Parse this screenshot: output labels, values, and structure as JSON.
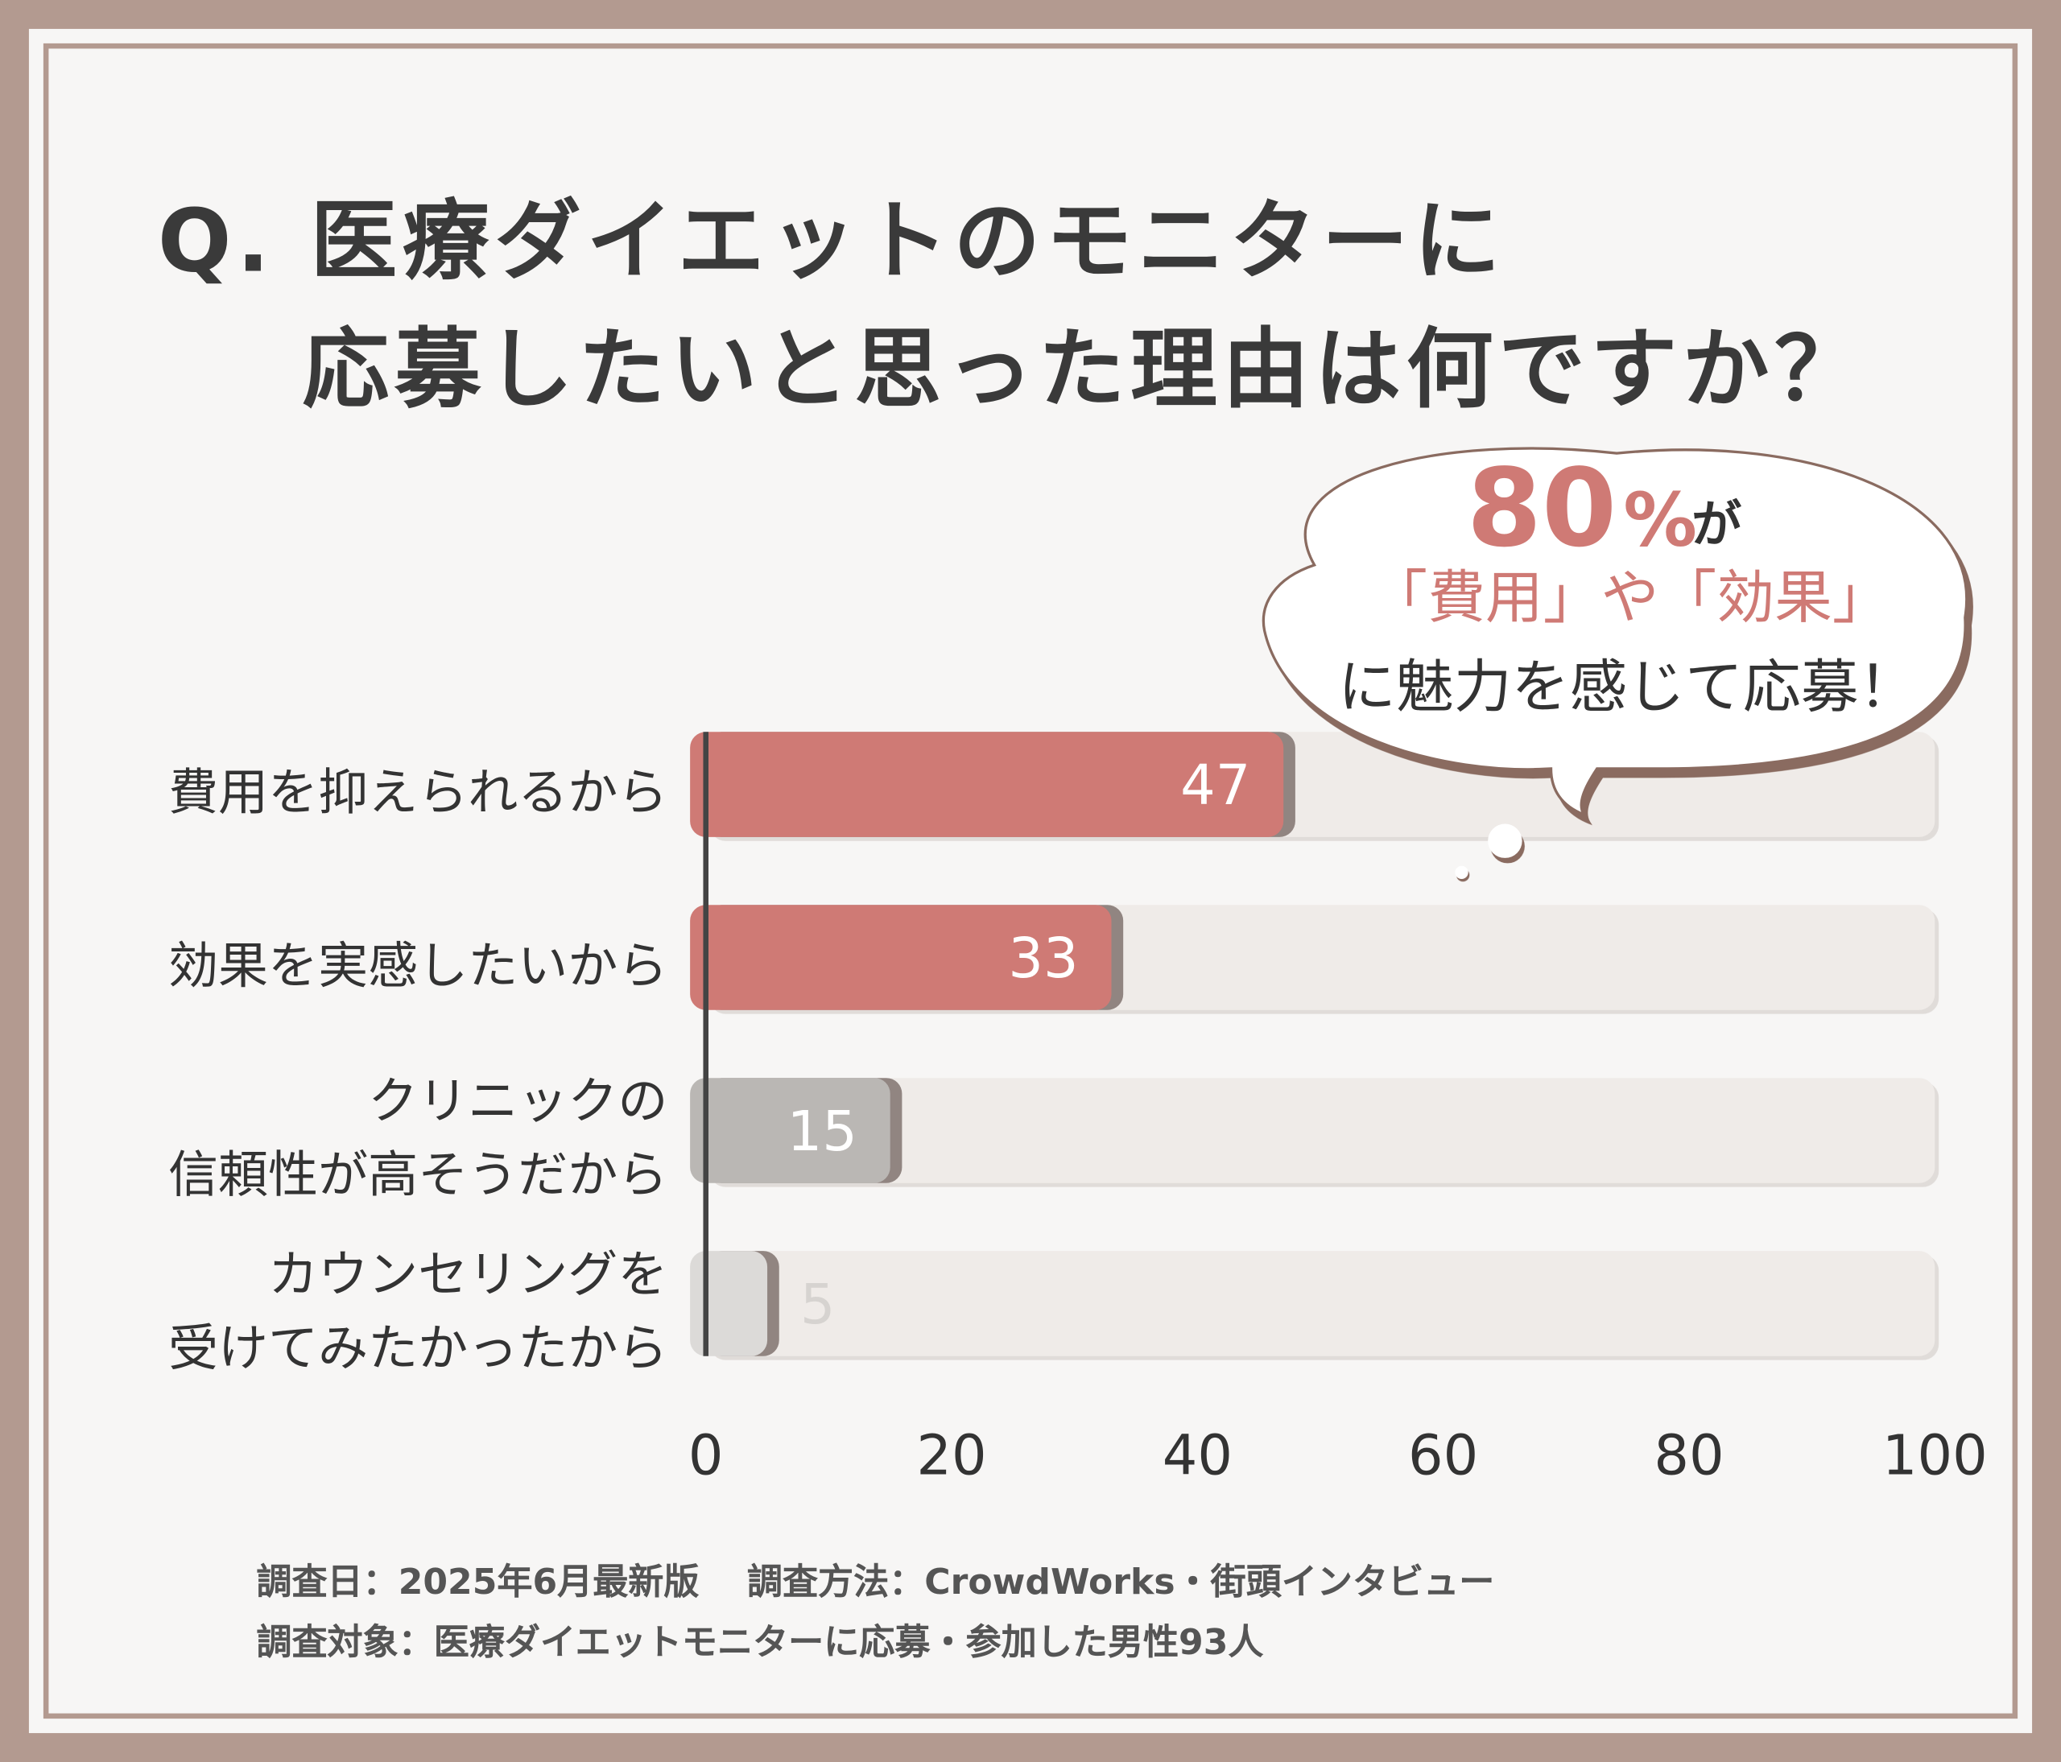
{
  "chart_data": {
    "type": "bar",
    "orientation": "horizontal",
    "title": [
      "Q. 医療ダイエットのモニターに",
      "応募したいと思った理由は何ですか？"
    ],
    "categories": [
      "費用を抑えられるから",
      "効果を実感したいから",
      "クリニックの\n信頼性が高そうだから",
      "カウンセリングを\n受けてみたかったから"
    ],
    "values": [
      47,
      33,
      15,
      5
    ],
    "colors": [
      "#cf7a75",
      "#cf7a75",
      "#bab7b4",
      "#dcdad8"
    ],
    "label_colors": [
      "#ffffff",
      "#ffffff",
      "#ffffff",
      "#d6d3d0"
    ],
    "track_color": "#efebe8",
    "xlim": [
      0,
      100
    ],
    "xticks": [
      0,
      20,
      40,
      60,
      80,
      100
    ],
    "callout": {
      "number": "80",
      "unit": "%",
      "particle": "が",
      "line2": "「費用」や「効果」",
      "line3": "に魅力を感じて応募！"
    },
    "footnotes": [
      "調査日：2025年6月最新版　 調査方法：CrowdWorks・街頭インタビュー",
      "調査対象：医療ダイエットモニターに応募・参加した男性93人"
    ]
  }
}
